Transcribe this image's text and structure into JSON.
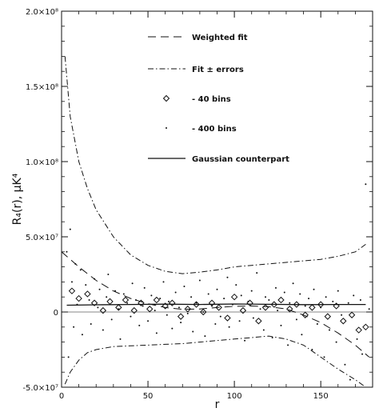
{
  "chart_data": {
    "type": "scatter",
    "title": "",
    "xlabel": "r",
    "ylabel": "R₄(r), μK⁴",
    "xlim": [
      0,
      180
    ],
    "ylim": [
      -50000000,
      200000000
    ],
    "x_ticks": [
      0,
      50,
      100,
      150
    ],
    "x_tick_labels": [
      "0",
      "50",
      "100",
      "150"
    ],
    "y_ticks": [
      -50000000,
      0,
      50000000,
      100000000,
      150000000,
      200000000
    ],
    "y_tick_labels": [
      "-5.0×10⁷",
      "0",
      "5.0×10⁷",
      "1.0×10⁸",
      "1.5×10⁸",
      "2.0×10⁸"
    ],
    "legend_position": "top-right",
    "series": [
      {
        "name": "Weighted fit",
        "style": "dashed",
        "x": [
          0,
          10,
          20,
          30,
          40,
          50,
          60,
          70,
          80,
          90,
          100,
          110,
          120,
          130,
          140,
          150,
          160,
          170,
          178
        ],
        "y": [
          40000000,
          30000000,
          21000000,
          14000000,
          9000000,
          5500000,
          3000000,
          1800000,
          2000000,
          3000000,
          3800000,
          4000000,
          3500000,
          2000000,
          -2000000,
          -7000000,
          -14000000,
          -22000000,
          -30000000
        ]
      },
      {
        "name": "Fit ± errors",
        "style": "dash-dot",
        "x": [
          2,
          5,
          10,
          15,
          20,
          30,
          40,
          50,
          60,
          70,
          80,
          90,
          100,
          110,
          120,
          130,
          140,
          150,
          160,
          170,
          176
        ],
        "y_upper": [
          170000000,
          130000000,
          100000000,
          82000000,
          68000000,
          50000000,
          38000000,
          31000000,
          27000000,
          25500000,
          26500000,
          28000000,
          30000000,
          31000000,
          32000000,
          33000000,
          34000000,
          35000000,
          37000000,
          40000000,
          45000000
        ],
        "y_lower": [
          -48000000,
          -40000000,
          -32000000,
          -27000000,
          -25000000,
          -23000000,
          -22500000,
          -22000000,
          -21500000,
          -21000000,
          -20000000,
          -19000000,
          -18000000,
          -17000000,
          -16000000,
          -18000000,
          -22000000,
          -30000000,
          -38000000,
          -45000000,
          -50000000
        ]
      },
      {
        "name": "- 40 bins",
        "style": "diamond",
        "x": [
          6,
          10,
          15,
          19,
          24,
          28,
          33,
          37,
          42,
          46,
          51,
          55,
          60,
          64,
          69,
          73,
          78,
          82,
          87,
          91,
          96,
          100,
          105,
          109,
          114,
          118,
          123,
          127,
          132,
          136,
          141,
          145,
          150,
          154,
          159,
          163,
          168,
          172,
          176
        ],
        "y": [
          14000000,
          9000000,
          12000000,
          6000000,
          1000000,
          7000000,
          3000000,
          8000000,
          1000000,
          6000000,
          2000000,
          8000000,
          4000000,
          6000000,
          -3000000,
          2000000,
          5000000,
          0,
          6000000,
          3000000,
          -4000000,
          10000000,
          1000000,
          6000000,
          -6000000,
          3000000,
          5000000,
          8000000,
          2000000,
          5000000,
          -2000000,
          3000000,
          5000000,
          -3000000,
          4000000,
          -6000000,
          -2000000,
          -12000000,
          -10000000
        ]
      },
      {
        "name": "- 400 bins",
        "style": "dot",
        "x": [
          3,
          4,
          5,
          6,
          7,
          8,
          9,
          11,
          12,
          14,
          16,
          17,
          19,
          21,
          22,
          24,
          26,
          27,
          29,
          31,
          33,
          34,
          36,
          38,
          40,
          41,
          43,
          45,
          47,
          48,
          50,
          52,
          54,
          55,
          57,
          59,
          61,
          62,
          64,
          66,
          68,
          69,
          71,
          73,
          75,
          76,
          78,
          80,
          82,
          83,
          85,
          87,
          89,
          90,
          92,
          94,
          96,
          97,
          99,
          101,
          103,
          104,
          106,
          108,
          110,
          111,
          113,
          115,
          117,
          118,
          120,
          122,
          124,
          125,
          127,
          129,
          131,
          132,
          134,
          136,
          138,
          139,
          141,
          143,
          145,
          146,
          148,
          150,
          152,
          153,
          155,
          157,
          159,
          160,
          162,
          164,
          166,
          167,
          169,
          171,
          173,
          174,
          176,
          178
        ],
        "y": [
          40000000,
          -30000000,
          55000000,
          20000000,
          -10000000,
          32000000,
          5000000,
          28000000,
          -15000000,
          18000000,
          8000000,
          -8000000,
          22000000,
          3000000,
          15000000,
          -12000000,
          10000000,
          25000000,
          -5000000,
          14000000,
          2000000,
          -18000000,
          12000000,
          6000000,
          -3000000,
          19000000,
          8000000,
          -9000000,
          4000000,
          16000000,
          -6000000,
          11000000,
          1000000,
          -14000000,
          9000000,
          20000000,
          -2000000,
          7000000,
          -11000000,
          13000000,
          3000000,
          -7000000,
          17000000,
          -1000000,
          10000000,
          -13000000,
          6000000,
          21000000,
          0,
          -16000000,
          12000000,
          4000000,
          -8000000,
          15000000,
          -3000000,
          9000000,
          23000000,
          -10000000,
          5000000,
          18000000,
          -6000000,
          11000000,
          -19000000,
          7000000,
          14000000,
          -4000000,
          26000000,
          2000000,
          -12000000,
          10000000,
          8000000,
          -17000000,
          16000000,
          1000000,
          -9000000,
          13000000,
          -22000000,
          6000000,
          19000000,
          -5000000,
          12000000,
          -15000000,
          4000000,
          9000000,
          -25000000,
          15000000,
          -8000000,
          3000000,
          -30000000,
          10000000,
          -12000000,
          7000000,
          -20000000,
          14000000,
          -2000000,
          -35000000,
          6000000,
          -45000000,
          11000000,
          -18000000,
          8000000,
          -28000000,
          85000000,
          2000000
        ]
      },
      {
        "name": "Gaussian counterpart",
        "style": "solid",
        "x": [
          3,
          20,
          40,
          60,
          80,
          100,
          120,
          140,
          160,
          176
        ],
        "y": [
          4500000,
          4800000,
          5000000,
          5200000,
          5000000,
          5300000,
          5100000,
          4900000,
          5000000,
          5000000
        ]
      }
    ]
  }
}
